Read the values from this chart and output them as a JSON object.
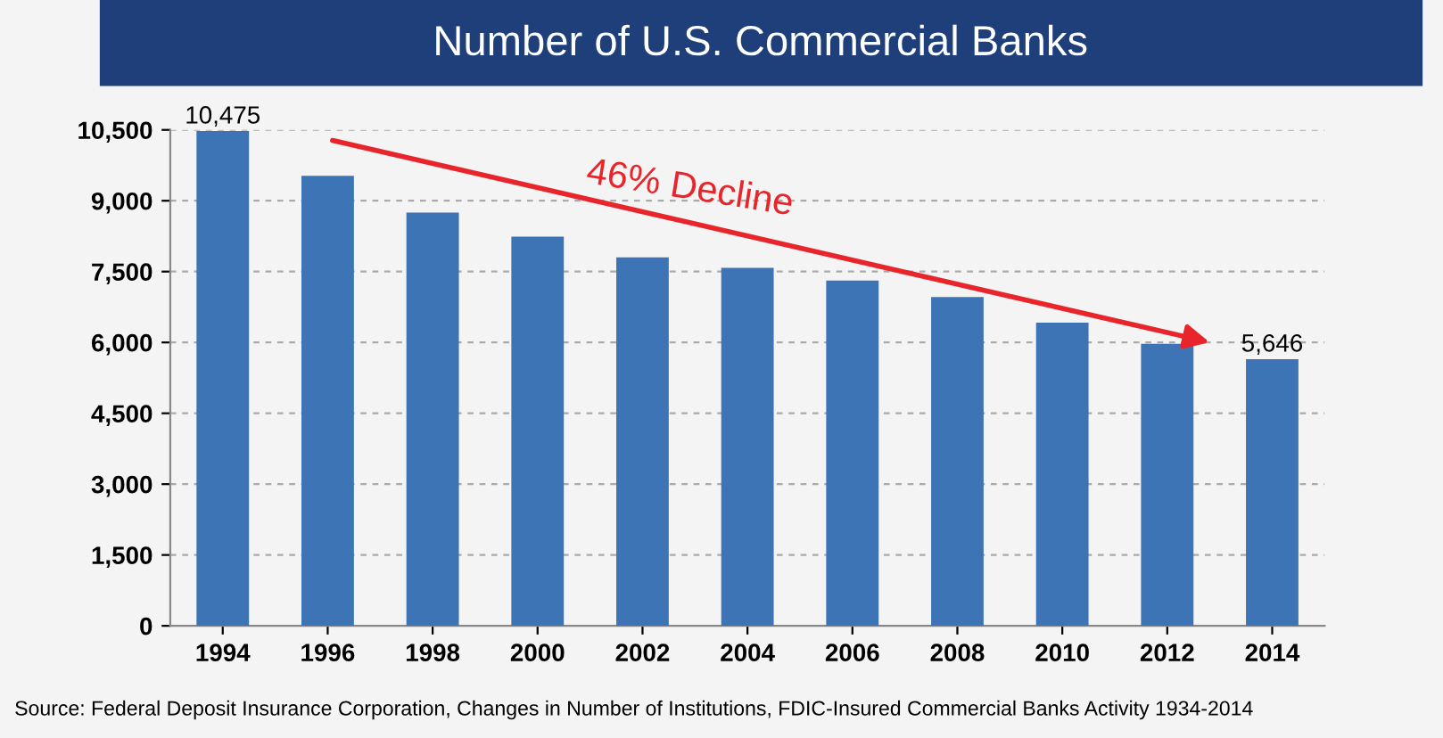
{
  "chart_data": {
    "type": "bar",
    "title": "Number of U.S. Commercial Banks",
    "categories": [
      "1994",
      "1996",
      "1998",
      "2000",
      "2002",
      "2004",
      "2006",
      "2008",
      "2010",
      "2012",
      "2014"
    ],
    "values": [
      10475,
      9530,
      8750,
      8240,
      7800,
      7580,
      7310,
      6960,
      6420,
      5970,
      5646
    ],
    "value_labels": [
      "10,475",
      null,
      null,
      null,
      null,
      null,
      null,
      null,
      null,
      null,
      "5,646"
    ],
    "color": "#3d74b6",
    "ylim": [
      0,
      10500
    ],
    "yticks": [
      {
        "value": 0,
        "label": "0"
      },
      {
        "value": 1500,
        "label": "1,500"
      },
      {
        "value": 3000,
        "label": "3,000"
      },
      {
        "value": 4500,
        "label": "4,500"
      },
      {
        "value": 6000,
        "label": "6,000"
      },
      {
        "value": 7500,
        "label": "7,500"
      },
      {
        "value": 9000,
        "label": "9,000"
      },
      {
        "value": 10500,
        "label": "10,500"
      }
    ],
    "grid": "y",
    "annotations": [
      "46% Decline",
      "Source: Federal Deposit Insurance Corporation, Changes in Number of Institutions, FDIC-Insured Commercial Banks Activity 1934-2014"
    ]
  }
}
